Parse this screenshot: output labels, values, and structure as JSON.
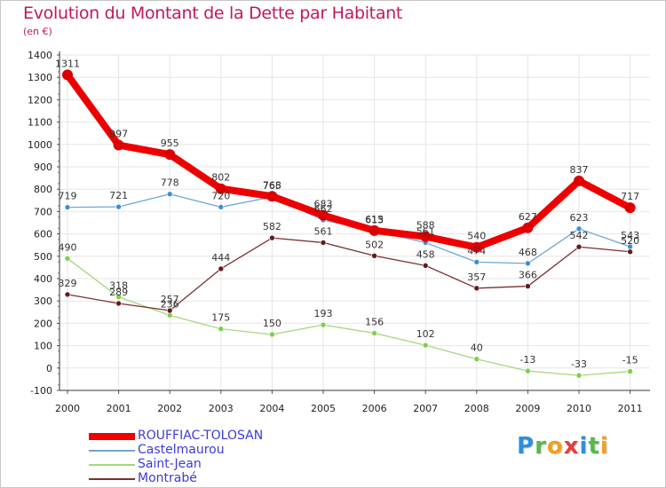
{
  "title": "Evolution du Montant de la Dette par Habitant",
  "subtitle": "(en €)",
  "logo": {
    "letters": [
      "P",
      "r",
      "o",
      "x",
      "i",
      "t",
      "i"
    ],
    "colors": [
      "#2f8fd8",
      "#58b84a",
      "#f0a020",
      "#e04040",
      "#2f8fd8",
      "#58b84a",
      "#f0a020"
    ]
  },
  "chart_data": {
    "type": "line",
    "title": "Evolution du Montant de la Dette par Habitant",
    "ylabel": "(en €)",
    "xlabel": "",
    "x": [
      "2000",
      "2001",
      "2002",
      "2003",
      "2004",
      "2005",
      "2006",
      "2007",
      "2008",
      "2009",
      "2010",
      "2011"
    ],
    "ylim": [
      -100,
      1400
    ],
    "yticks": [
      "-100",
      "0",
      "100",
      "200",
      "300",
      "400",
      "500",
      "600",
      "700",
      "800",
      "900",
      "1000",
      "1100",
      "1200",
      "1300",
      "1400"
    ],
    "grid": true,
    "legend_position": "bottom-left",
    "series": [
      {
        "name": "ROUFFIAC-TOLOSAN",
        "color": "#ee0000",
        "marker_color": "#dd0000",
        "emphasis": "thick",
        "values": [
          1311,
          997,
          955,
          802,
          768,
          683,
          615,
          588,
          540,
          627,
          837,
          717
        ],
        "labels": [
          "1311",
          "997",
          "955",
          "802",
          "768",
          "683",
          "615",
          "588",
          "540",
          "627",
          "837",
          "717"
        ]
      },
      {
        "name": "Castelmaurou",
        "color": "#6ea6d4",
        "marker_color": "#3c8fd6",
        "emphasis": "thin",
        "values": [
          719,
          721,
          778,
          720,
          765,
          662,
          613,
          561,
          474,
          468,
          623,
          543
        ],
        "labels": [
          "719",
          "721",
          "778",
          "720",
          "765",
          "662",
          "613",
          "561",
          "474",
          "468",
          "623",
          "543"
        ]
      },
      {
        "name": "Saint-Jean",
        "color": "#a6d87e",
        "marker_color": "#7ed04a",
        "emphasis": "thin",
        "values": [
          490,
          318,
          236,
          175,
          150,
          193,
          156,
          102,
          40,
          -13,
          -33,
          -15
        ],
        "labels": [
          "490",
          "318",
          "236",
          "175",
          "150",
          "193",
          "156",
          "102",
          "40",
          "-13",
          "-33",
          "-15"
        ]
      },
      {
        "name": "Montrabé",
        "color": "#7a3030",
        "marker_color": "#6a1818",
        "emphasis": "thin",
        "values": [
          329,
          289,
          257,
          444,
          582,
          561,
          502,
          458,
          357,
          366,
          542,
          520
        ],
        "labels": [
          "329",
          "289",
          "257",
          "444",
          "582",
          "561",
          "502",
          "458",
          "357",
          "366",
          "542",
          "520"
        ]
      }
    ]
  }
}
